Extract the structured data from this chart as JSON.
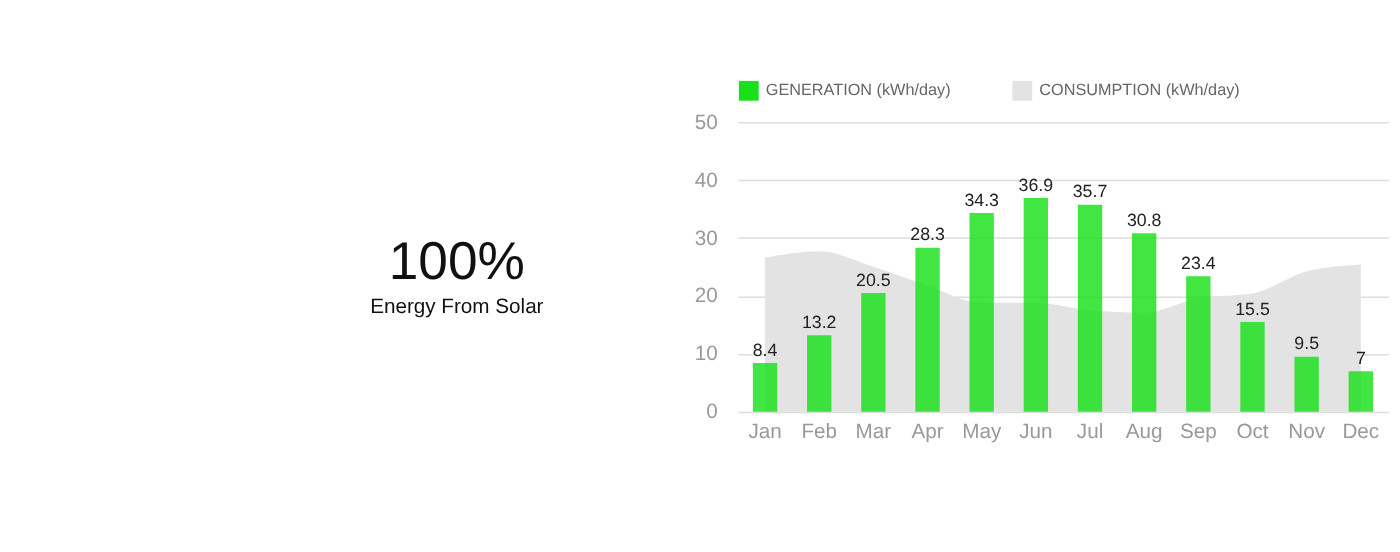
{
  "chart_data": {
    "type": "bar",
    "categories": [
      "Jan",
      "Feb",
      "Mar",
      "Apr",
      "May",
      "Jun",
      "Jul",
      "Aug",
      "Sep",
      "Oct",
      "Nov",
      "Dec"
    ],
    "series": [
      {
        "name": "GENERATION (kWh/day)",
        "color": "#19e019",
        "values": [
          8.4,
          13.2,
          20.5,
          28.3,
          34.3,
          36.9,
          35.7,
          30.8,
          23.4,
          15.5,
          9.5,
          7
        ],
        "value_labels": [
          "8.4",
          "13.2",
          "20.5",
          "28.3",
          "34.3",
          "36.9",
          "35.7",
          "30.8",
          "23.4",
          "15.5",
          "9.5",
          "7"
        ]
      },
      {
        "name": "CONSUMPTION (kWh/day)",
        "type": "area",
        "color": "#e3e3e3",
        "values": [
          26.6,
          27.7,
          25,
          21.8,
          18.8,
          18.8,
          17.5,
          17.1,
          19.6,
          20.4,
          24.2,
          25.4
        ]
      }
    ],
    "ylim": [
      0,
      50
    ],
    "yticks": [
      0,
      10,
      20,
      30,
      40,
      50
    ],
    "grid": "y",
    "legend": "top",
    "annotations": [
      "100%",
      "Energy From Solar"
    ]
  }
}
